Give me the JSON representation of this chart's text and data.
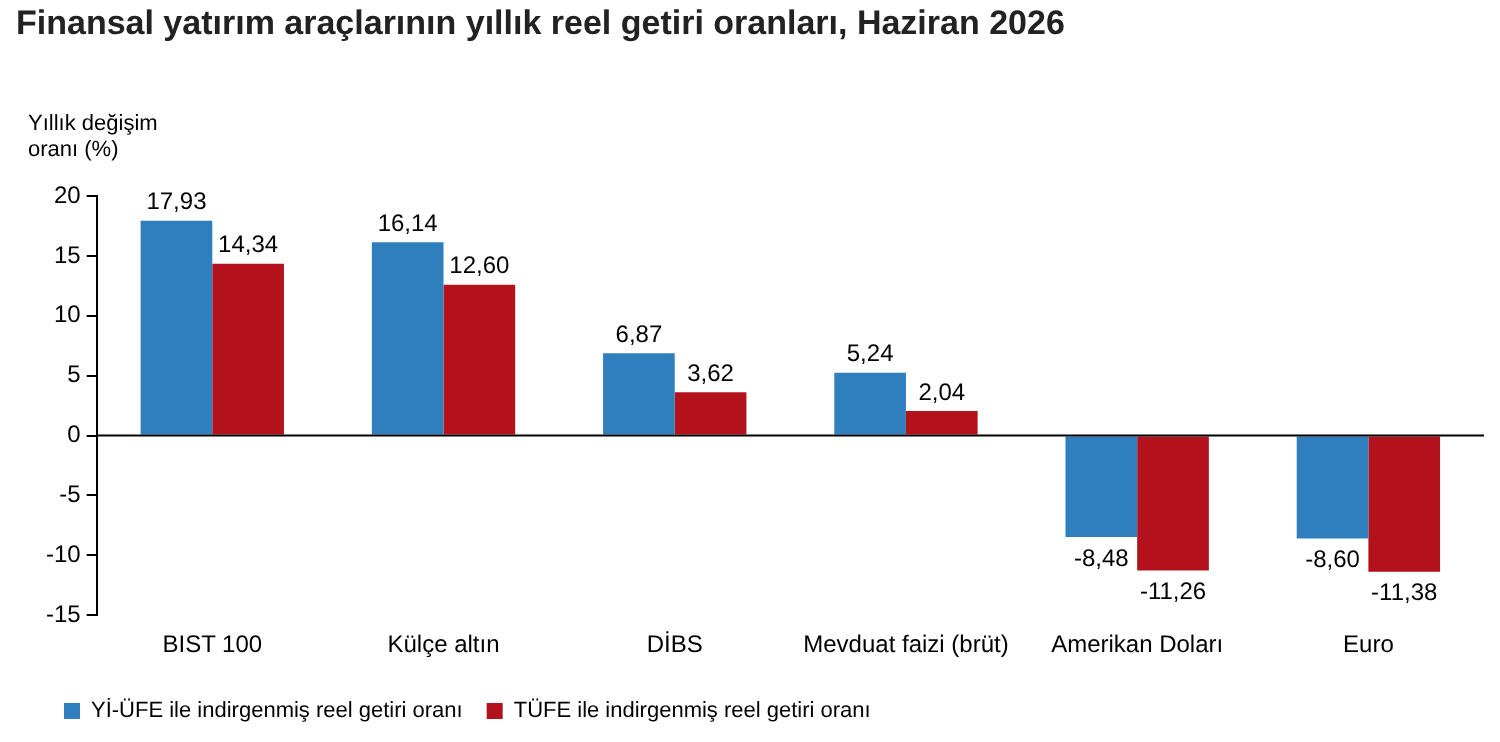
{
  "chart_data": {
    "type": "bar",
    "title": "Finansal yatırım araçlarının yıllık reel getiri oranları, Haziran 2026",
    "ylabel": "Yıllık değişim oranı (%)",
    "categories": [
      "BIST 100",
      "Külçe altın",
      "DİBS",
      "Mevduat faizi (brüt)",
      "Amerikan Doları",
      "Euro"
    ],
    "series": [
      {
        "name": "Yİ-ÜFE ile indirgenmiş reel getiri oranı",
        "color": "#2f7fbf",
        "values": [
          17.93,
          16.14,
          6.87,
          5.24,
          -8.48,
          -8.6
        ],
        "value_labels": [
          "17,93",
          "16,14",
          "6,87",
          "5,24",
          "-8,48",
          "-8,60"
        ]
      },
      {
        "name": "TÜFE ile indirgenmiş reel getiri oranı",
        "color": "#b3121c",
        "values": [
          14.34,
          12.6,
          3.62,
          2.04,
          -11.26,
          -11.38
        ],
        "value_labels": [
          "14,34",
          "12,60",
          "3,62",
          "2,04",
          "-11,26",
          "-11,38"
        ]
      }
    ],
    "ylim": [
      -15,
      20
    ],
    "yticks": [
      -15,
      -10,
      -5,
      0,
      5,
      10,
      15,
      20
    ],
    "grid": false,
    "legend": "bottom left",
    "ref_lines": [
      {
        "axis": "y",
        "value": 0,
        "color": "#000000"
      }
    ]
  }
}
